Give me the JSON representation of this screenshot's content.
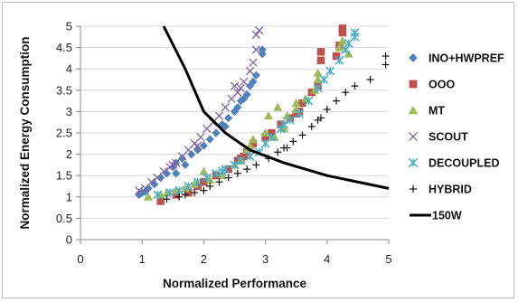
{
  "chart_data": {
    "type": "scatter",
    "xlabel": "Normalized Performance",
    "ylabel": "Normalized Energy Consumption",
    "xlim": [
      0,
      5
    ],
    "ylim": [
      0,
      5
    ],
    "xticks": [
      "0",
      "1",
      "2",
      "3",
      "4",
      "5"
    ],
    "yticks": [
      "0",
      "0.5",
      "1",
      "1.5",
      "2",
      "2.5",
      "3",
      "3.5",
      "4",
      "4.5",
      "5"
    ],
    "grid": "horizontal",
    "legend_position": "right",
    "series": [
      {
        "name": "INO+HWPREF",
        "marker": "diamond",
        "color": "#4F81BD",
        "points": [
          [
            0.95,
            1.05
          ],
          [
            1.0,
            1.1
          ],
          [
            1.05,
            1.12
          ],
          [
            1.1,
            1.2
          ],
          [
            1.2,
            1.3
          ],
          [
            1.3,
            1.45
          ],
          [
            1.4,
            1.55
          ],
          [
            1.5,
            1.7
          ],
          [
            1.55,
            1.8
          ],
          [
            1.65,
            1.9
          ],
          [
            1.8,
            2.0
          ],
          [
            1.9,
            2.1
          ],
          [
            2.0,
            2.2
          ],
          [
            2.1,
            2.35
          ],
          [
            2.2,
            2.5
          ],
          [
            2.3,
            2.7
          ],
          [
            2.4,
            2.85
          ],
          [
            2.5,
            3.0
          ],
          [
            2.55,
            3.1
          ],
          [
            2.6,
            3.25
          ],
          [
            2.7,
            3.4
          ],
          [
            2.75,
            3.6
          ],
          [
            2.8,
            3.7
          ],
          [
            2.85,
            3.85
          ],
          [
            2.95,
            4.35
          ],
          [
            2.95,
            4.45
          ],
          [
            1.55,
            1.55
          ],
          [
            1.7,
            1.75
          ],
          [
            2.35,
            2.65
          ],
          [
            2.65,
            3.3
          ]
        ]
      },
      {
        "name": "OOO",
        "marker": "square",
        "color": "#C0504D",
        "points": [
          [
            1.3,
            0.9
          ],
          [
            1.55,
            1.05
          ],
          [
            1.75,
            1.1
          ],
          [
            1.9,
            1.25
          ],
          [
            2.0,
            1.35
          ],
          [
            2.2,
            1.5
          ],
          [
            2.4,
            1.65
          ],
          [
            2.55,
            1.85
          ],
          [
            2.6,
            1.9
          ],
          [
            2.7,
            2.05
          ],
          [
            2.8,
            2.25
          ],
          [
            3.0,
            2.4
          ],
          [
            3.1,
            2.5
          ],
          [
            3.25,
            2.7
          ],
          [
            3.4,
            2.85
          ],
          [
            3.5,
            2.95
          ],
          [
            3.6,
            3.2
          ],
          [
            3.75,
            3.45
          ],
          [
            3.85,
            3.6
          ],
          [
            3.9,
            4.2
          ],
          [
            3.9,
            4.4
          ],
          [
            4.15,
            4.3
          ],
          [
            4.2,
            4.55
          ],
          [
            4.25,
            4.85
          ],
          [
            4.25,
            4.95
          ],
          [
            2.65,
            1.95
          ],
          [
            3.55,
            3.0
          ]
        ]
      },
      {
        "name": "MT",
        "marker": "triangle",
        "color": "#9BBB59",
        "points": [
          [
            1.1,
            1.0
          ],
          [
            1.3,
            1.05
          ],
          [
            1.4,
            1.1
          ],
          [
            1.55,
            1.15
          ],
          [
            1.7,
            1.2
          ],
          [
            1.85,
            1.3
          ],
          [
            2.0,
            1.6
          ],
          [
            2.1,
            1.4
          ],
          [
            2.3,
            1.5
          ],
          [
            2.5,
            1.75
          ],
          [
            2.6,
            1.85
          ],
          [
            2.7,
            2.1
          ],
          [
            2.8,
            2.35
          ],
          [
            3.0,
            2.5
          ],
          [
            3.05,
            2.9
          ],
          [
            3.15,
            2.4
          ],
          [
            3.3,
            2.6
          ],
          [
            3.35,
            2.9
          ],
          [
            3.5,
            3.05
          ],
          [
            3.5,
            3.2
          ],
          [
            3.65,
            3.3
          ],
          [
            3.8,
            3.5
          ],
          [
            3.85,
            3.75
          ],
          [
            3.85,
            3.9
          ],
          [
            4.2,
            4.5
          ],
          [
            4.25,
            4.65
          ],
          [
            4.35,
            4.35
          ],
          [
            2.75,
            2.2
          ],
          [
            3.2,
            3.1
          ]
        ]
      },
      {
        "name": "SCOUT",
        "marker": "x",
        "color": "#8064A2",
        "points": [
          [
            0.95,
            1.15
          ],
          [
            1.05,
            1.2
          ],
          [
            1.15,
            1.35
          ],
          [
            1.25,
            1.45
          ],
          [
            1.35,
            1.6
          ],
          [
            1.45,
            1.7
          ],
          [
            1.55,
            1.8
          ],
          [
            1.65,
            1.95
          ],
          [
            1.75,
            2.1
          ],
          [
            1.85,
            2.25
          ],
          [
            1.95,
            2.4
          ],
          [
            2.05,
            2.6
          ],
          [
            2.15,
            2.75
          ],
          [
            2.25,
            2.9
          ],
          [
            2.35,
            3.1
          ],
          [
            2.45,
            3.3
          ],
          [
            2.55,
            3.45
          ],
          [
            2.65,
            3.7
          ],
          [
            2.75,
            3.95
          ],
          [
            2.8,
            4.15
          ],
          [
            2.85,
            4.45
          ],
          [
            2.85,
            4.8
          ],
          [
            2.9,
            4.9
          ],
          [
            2.5,
            3.6
          ],
          [
            2.6,
            3.55
          ],
          [
            1.5,
            1.75
          ],
          [
            1.9,
            2.2
          ]
        ]
      },
      {
        "name": "DECOUPLED",
        "marker": "star",
        "color": "#4BACC6",
        "points": [
          [
            1.25,
            1.05
          ],
          [
            1.45,
            1.1
          ],
          [
            1.6,
            1.15
          ],
          [
            1.75,
            1.25
          ],
          [
            1.9,
            1.35
          ],
          [
            2.05,
            1.45
          ],
          [
            2.2,
            1.55
          ],
          [
            2.35,
            1.65
          ],
          [
            2.5,
            1.75
          ],
          [
            2.6,
            1.85
          ],
          [
            2.75,
            1.95
          ],
          [
            2.9,
            2.05
          ],
          [
            3.0,
            2.25
          ],
          [
            3.1,
            2.4
          ],
          [
            3.25,
            2.6
          ],
          [
            3.4,
            2.8
          ],
          [
            3.55,
            2.95
          ],
          [
            3.7,
            3.25
          ],
          [
            3.85,
            3.55
          ],
          [
            3.95,
            3.75
          ],
          [
            4.05,
            3.95
          ],
          [
            4.2,
            4.2
          ],
          [
            4.3,
            4.45
          ],
          [
            4.35,
            4.6
          ],
          [
            4.45,
            4.85
          ],
          [
            4.45,
            4.75
          ],
          [
            2.3,
            1.6
          ],
          [
            3.3,
            2.7
          ]
        ]
      },
      {
        "name": "HYBRID",
        "marker": "plus",
        "color": "#111111",
        "points": [
          [
            1.4,
            0.95
          ],
          [
            1.6,
            1.0
          ],
          [
            1.7,
            1.05
          ],
          [
            1.85,
            1.1
          ],
          [
            2.0,
            1.15
          ],
          [
            2.1,
            1.25
          ],
          [
            2.25,
            1.35
          ],
          [
            2.4,
            1.45
          ],
          [
            2.55,
            1.55
          ],
          [
            2.7,
            1.65
          ],
          [
            2.85,
            1.75
          ],
          [
            3.05,
            1.9
          ],
          [
            3.2,
            2.05
          ],
          [
            3.3,
            2.15
          ],
          [
            3.45,
            2.3
          ],
          [
            3.6,
            2.45
          ],
          [
            3.75,
            2.65
          ],
          [
            3.85,
            2.8
          ],
          [
            4.0,
            3.05
          ],
          [
            4.15,
            3.25
          ],
          [
            4.3,
            3.45
          ],
          [
            4.45,
            3.6
          ],
          [
            4.7,
            3.75
          ],
          [
            4.95,
            4.1
          ],
          [
            4.95,
            4.3
          ],
          [
            3.9,
            2.85
          ],
          [
            3.35,
            2.15
          ]
        ]
      }
    ],
    "line_series": {
      "name": "150W",
      "color": "#000000",
      "points": [
        [
          1.35,
          5.0
        ],
        [
          1.7,
          4.0
        ],
        [
          2.0,
          3.0
        ],
        [
          2.35,
          2.5
        ],
        [
          2.75,
          2.1
        ],
        [
          3.3,
          1.8
        ],
        [
          4.0,
          1.5
        ],
        [
          5.0,
          1.2
        ]
      ]
    }
  }
}
